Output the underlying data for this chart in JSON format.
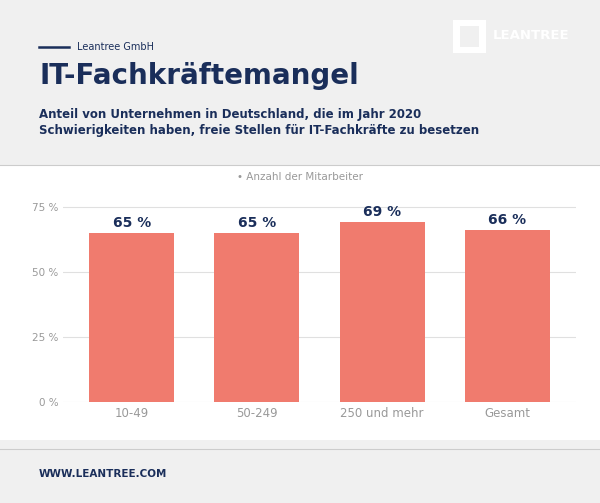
{
  "categories": [
    "10-49",
    "50-249",
    "250 und mehr",
    "Gesamt"
  ],
  "values": [
    65,
    65,
    69,
    66
  ],
  "bar_color": "#F07B6E",
  "bar_labels": [
    "65 %",
    "65 %",
    "69 %",
    "66 %"
  ],
  "title": "IT-Fachkräftemangel",
  "subtitle_line1": "Anteil von Unternehmen in Deutschland, die im Jahr 2020",
  "subtitle_line2": "Schwierigkeiten haben, freie Stellen für IT-Fachkräfte zu besetzen",
  "legend_label": "Anzahl der Mitarbeiter",
  "company_line": "Leantree GmbH",
  "website": "WWW.LEANTREE.COM",
  "leantree_text": "LEANTREE",
  "ylim": [
    0,
    80
  ],
  "yticks": [
    0,
    25,
    50,
    75
  ],
  "ytick_labels": [
    "0 %",
    "25 %",
    "50 %",
    "75 %"
  ],
  "background_color": "#f0f0f0",
  "chart_bg_color": "#ffffff",
  "title_color": "#1a2e5a",
  "subtitle_color": "#1a2e5a",
  "bar_label_color": "#1a2e5a",
  "grid_color": "#e0e0e0",
  "tick_color": "#999999",
  "company_color": "#1a2e5a",
  "website_color": "#1a2e5a",
  "line_color": "#1a2e5a",
  "white_color": "#ffffff",
  "separator_color": "#cccccc"
}
